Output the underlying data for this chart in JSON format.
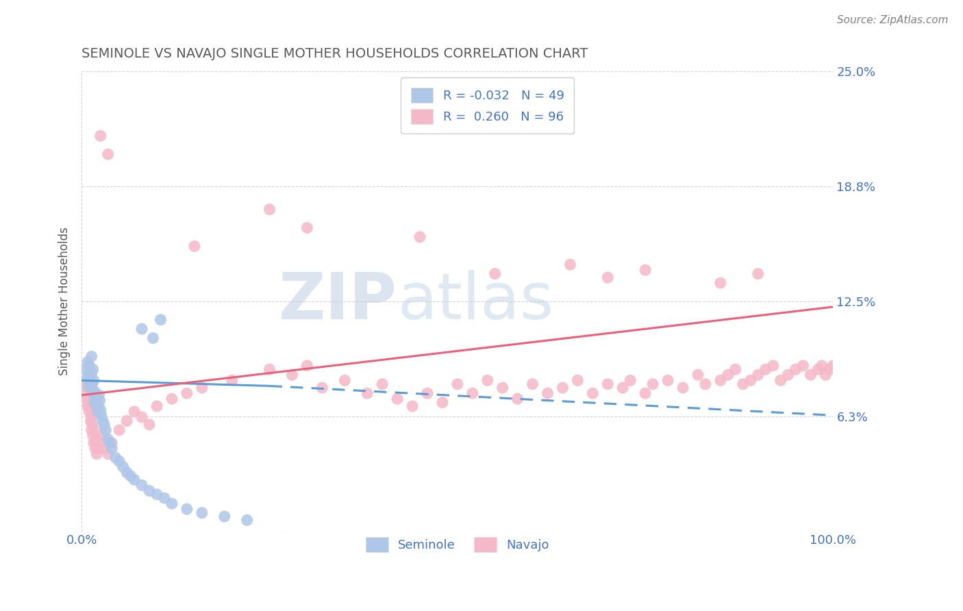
{
  "title": "SEMINOLE VS NAVAJO SINGLE MOTHER HOUSEHOLDS CORRELATION CHART",
  "source_text": "Source: ZipAtlas.com",
  "ylabel": "Single Mother Households",
  "xlim": [
    0,
    1
  ],
  "ylim": [
    0,
    0.25
  ],
  "yticks": [
    0.0,
    0.0625,
    0.125,
    0.1875,
    0.25
  ],
  "ytick_labels": [
    "",
    "6.3%",
    "12.5%",
    "18.8%",
    "25.0%"
  ],
  "seminole_R": -0.032,
  "seminole_N": 49,
  "navajo_R": 0.26,
  "navajo_N": 96,
  "seminole_color": "#aec6e8",
  "navajo_color": "#f5b8c8",
  "seminole_line_color": "#5b9bd5",
  "navajo_line_color": "#e8607a",
  "background_color": "#ffffff",
  "grid_color": "#c8c8c8",
  "legend_text_color": "#4472c4",
  "title_color": "#595959",
  "watermark_color": "#d5e2ef",
  "seminole_x": [
    0.005,
    0.007,
    0.008,
    0.009,
    0.01,
    0.01,
    0.011,
    0.012,
    0.013,
    0.013,
    0.014,
    0.015,
    0.015,
    0.016,
    0.017,
    0.017,
    0.018,
    0.019,
    0.02,
    0.021,
    0.022,
    0.023,
    0.024,
    0.025,
    0.026,
    0.028,
    0.03,
    0.032,
    0.035,
    0.038,
    0.04,
    0.045,
    0.05,
    0.055,
    0.06,
    0.065,
    0.07,
    0.08,
    0.09,
    0.1,
    0.11,
    0.12,
    0.14,
    0.16,
    0.19,
    0.22,
    0.08,
    0.095,
    0.105
  ],
  "seminole_y": [
    0.088,
    0.083,
    0.092,
    0.079,
    0.085,
    0.09,
    0.082,
    0.078,
    0.086,
    0.095,
    0.08,
    0.075,
    0.088,
    0.082,
    0.07,
    0.076,
    0.073,
    0.069,
    0.072,
    0.065,
    0.068,
    0.074,
    0.071,
    0.066,
    0.063,
    0.06,
    0.058,
    0.055,
    0.05,
    0.048,
    0.045,
    0.04,
    0.038,
    0.035,
    0.032,
    0.03,
    0.028,
    0.025,
    0.022,
    0.02,
    0.018,
    0.015,
    0.012,
    0.01,
    0.008,
    0.006,
    0.11,
    0.105,
    0.115
  ],
  "navajo_x": [
    0.005,
    0.006,
    0.007,
    0.008,
    0.008,
    0.009,
    0.01,
    0.01,
    0.011,
    0.012,
    0.013,
    0.013,
    0.014,
    0.015,
    0.015,
    0.016,
    0.017,
    0.018,
    0.019,
    0.02,
    0.022,
    0.025,
    0.028,
    0.03,
    0.035,
    0.04,
    0.05,
    0.06,
    0.07,
    0.08,
    0.09,
    0.1,
    0.12,
    0.14,
    0.16,
    0.2,
    0.25,
    0.28,
    0.3,
    0.32,
    0.35,
    0.38,
    0.4,
    0.42,
    0.44,
    0.46,
    0.48,
    0.5,
    0.52,
    0.54,
    0.56,
    0.58,
    0.6,
    0.62,
    0.64,
    0.66,
    0.68,
    0.7,
    0.72,
    0.73,
    0.75,
    0.76,
    0.78,
    0.8,
    0.82,
    0.83,
    0.85,
    0.86,
    0.87,
    0.88,
    0.89,
    0.9,
    0.91,
    0.92,
    0.93,
    0.94,
    0.95,
    0.96,
    0.97,
    0.98,
    0.985,
    0.99,
    0.995,
    1.0,
    0.15,
    0.25,
    0.3,
    0.45,
    0.55,
    0.65,
    0.7,
    0.75,
    0.85,
    0.9,
    0.025,
    0.035
  ],
  "navajo_y": [
    0.08,
    0.075,
    0.072,
    0.068,
    0.078,
    0.07,
    0.065,
    0.073,
    0.068,
    0.06,
    0.062,
    0.055,
    0.058,
    0.052,
    0.065,
    0.048,
    0.055,
    0.045,
    0.05,
    0.042,
    0.045,
    0.048,
    0.052,
    0.045,
    0.042,
    0.048,
    0.055,
    0.06,
    0.065,
    0.062,
    0.058,
    0.068,
    0.072,
    0.075,
    0.078,
    0.082,
    0.088,
    0.085,
    0.09,
    0.078,
    0.082,
    0.075,
    0.08,
    0.072,
    0.068,
    0.075,
    0.07,
    0.08,
    0.075,
    0.082,
    0.078,
    0.072,
    0.08,
    0.075,
    0.078,
    0.082,
    0.075,
    0.08,
    0.078,
    0.082,
    0.075,
    0.08,
    0.082,
    0.078,
    0.085,
    0.08,
    0.082,
    0.085,
    0.088,
    0.08,
    0.082,
    0.085,
    0.088,
    0.09,
    0.082,
    0.085,
    0.088,
    0.09,
    0.085,
    0.088,
    0.09,
    0.085,
    0.088,
    0.09,
    0.155,
    0.175,
    0.165,
    0.16,
    0.14,
    0.145,
    0.138,
    0.142,
    0.135,
    0.14,
    0.215,
    0.205
  ],
  "seminole_line_start_x": 0.0,
  "seminole_line_start_y": 0.082,
  "seminole_line_end_x": 0.25,
  "seminole_line_end_y": 0.079,
  "seminole_line_dash_start_x": 0.25,
  "seminole_line_dash_start_y": 0.079,
  "seminole_line_dash_end_x": 1.0,
  "seminole_line_dash_end_y": 0.063,
  "navajo_line_start_x": 0.0,
  "navajo_line_start_y": 0.074,
  "navajo_line_end_x": 1.0,
  "navajo_line_end_y": 0.122
}
